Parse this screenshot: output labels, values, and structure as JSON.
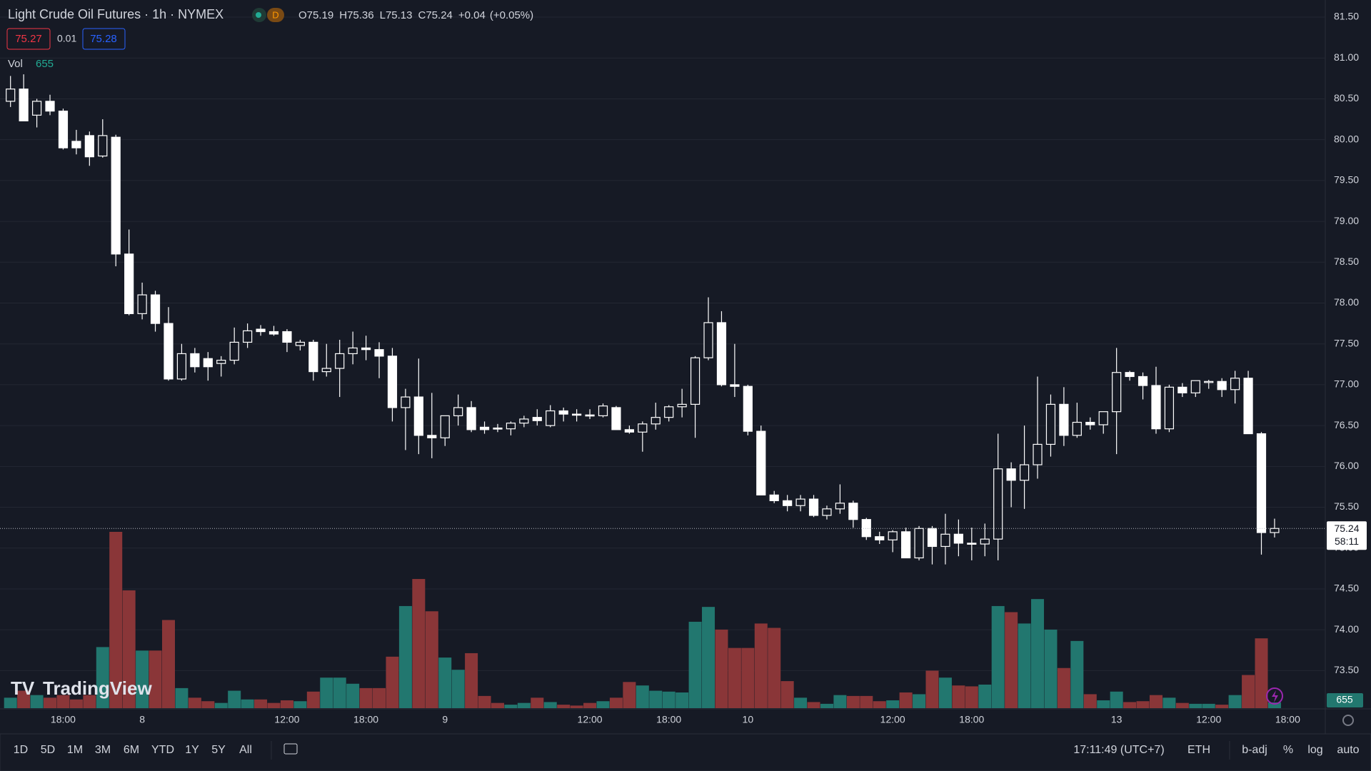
{
  "header": {
    "title": "Light Crude Oil Futures · 1h · NYMEX",
    "badge": "D",
    "open_label": "O",
    "high_label": "H",
    "low_label": "L",
    "close_label": "C",
    "change": "+0.04",
    "change_percent": "(+0.05%)",
    "bid": 75.27,
    "spread": 0.01,
    "ask": 75.28,
    "volume_label": "Vol",
    "countdown": "58:11",
    "brand": "TradingView"
  },
  "toolbar": {
    "ranges": [
      "1D",
      "5D",
      "1M",
      "3M",
      "6M",
      "YTD",
      "1Y",
      "5Y",
      "All"
    ],
    "clock": "17:11:49 (UTC+7)",
    "session": "ETH",
    "adjust": "b-adj",
    "percent": "%",
    "log": "log",
    "auto": "auto"
  },
  "chart_data": {
    "type": "candlestick",
    "categories": [
      null,
      null,
      null,
      null,
      "18:00",
      null,
      null,
      null,
      null,
      null,
      "8",
      null,
      null,
      null,
      null,
      null,
      null,
      null,
      null,
      null,
      null,
      "12:00",
      null,
      null,
      null,
      null,
      null,
      "18:00",
      null,
      null,
      null,
      null,
      null,
      "9",
      null,
      null,
      null,
      null,
      null,
      null,
      null,
      null,
      null,
      null,
      "12:00",
      null,
      null,
      null,
      null,
      null,
      "18:00",
      null,
      null,
      null,
      null,
      null,
      "10",
      null,
      null,
      null,
      null,
      null,
      null,
      null,
      null,
      null,
      null,
      "12:00",
      null,
      null,
      null,
      null,
      null,
      "18:00",
      null,
      null,
      null,
      null,
      null,
      null,
      null,
      null,
      null,
      null,
      "13",
      null,
      null,
      null,
      null,
      null,
      null,
      "12:00",
      null,
      null,
      null,
      null,
      null,
      "18:00"
    ],
    "open": [
      80.47,
      80.62,
      80.3,
      80.47,
      80.35,
      79.98,
      80.05,
      79.8,
      80.03,
      78.6,
      77.87,
      78.1,
      77.75,
      77.07,
      77.38,
      77.32,
      77.26,
      77.3,
      77.52,
      77.68,
      77.65,
      77.65,
      77.48,
      77.52,
      77.16,
      77.2,
      77.38,
      77.45,
      77.43,
      77.35,
      76.72,
      76.85,
      76.38,
      76.35,
      76.62,
      76.72,
      76.48,
      76.47,
      76.46,
      76.53,
      76.6,
      76.5,
      76.68,
      76.64,
      76.63,
      76.62,
      76.72,
      76.45,
      76.42,
      76.52,
      76.6,
      76.73,
      76.76,
      77.33,
      77.76,
      77.0,
      76.98,
      76.43,
      75.65,
      75.58,
      75.52,
      75.6,
      75.4,
      75.48,
      75.55,
      75.35,
      75.14,
      75.1,
      75.2,
      74.88,
      75.24,
      75.02,
      75.17,
      75.06,
      75.05,
      75.11,
      75.97,
      75.83,
      76.02,
      76.27,
      76.76,
      76.38,
      76.54,
      76.51,
      76.67,
      77.15,
      77.1,
      76.99,
      76.46,
      76.97,
      76.9,
      77.03,
      77.04,
      76.94,
      77.08,
      76.4,
      75.19,
      null
    ],
    "high": [
      80.78,
      80.8,
      80.5,
      80.55,
      80.38,
      80.12,
      80.1,
      80.25,
      80.06,
      78.9,
      78.25,
      78.15,
      77.95,
      77.5,
      77.45,
      77.4,
      77.35,
      77.7,
      77.75,
      77.73,
      77.72,
      77.68,
      77.55,
      77.55,
      77.5,
      77.55,
      77.65,
      77.6,
      77.52,
      77.45,
      76.95,
      77.32,
      76.9,
      76.6,
      76.88,
      76.8,
      76.55,
      76.52,
      76.55,
      76.62,
      76.7,
      76.75,
      76.72,
      76.7,
      76.7,
      76.77,
      76.74,
      76.5,
      76.55,
      76.78,
      76.75,
      76.95,
      77.35,
      78.07,
      77.9,
      77.5,
      77.0,
      76.5,
      75.7,
      75.65,
      75.65,
      75.65,
      75.52,
      75.78,
      75.58,
      75.37,
      75.2,
      75.22,
      75.25,
      75.27,
      75.27,
      75.42,
      75.35,
      75.25,
      75.3,
      76.4,
      76.05,
      76.5,
      77.1,
      76.88,
      76.97,
      76.78,
      76.6,
      76.65,
      77.45,
      77.17,
      77.15,
      77.22,
      77.0,
      77.02,
      77.05,
      77.06,
      77.08,
      77.17,
      77.17,
      76.42,
      75.36,
      null
    ],
    "low": [
      80.4,
      80.25,
      80.15,
      80.3,
      79.88,
      79.82,
      79.68,
      79.78,
      78.45,
      77.85,
      77.8,
      77.65,
      77.05,
      77.05,
      77.15,
      77.05,
      77.1,
      77.25,
      77.45,
      77.6,
      77.6,
      77.4,
      77.42,
      77.05,
      77.1,
      76.85,
      77.25,
      77.3,
      77.08,
      76.55,
      76.2,
      76.15,
      76.1,
      76.25,
      76.5,
      76.42,
      76.4,
      76.42,
      76.38,
      76.48,
      76.5,
      76.48,
      76.55,
      76.55,
      76.58,
      76.6,
      76.45,
      76.4,
      76.18,
      76.45,
      76.55,
      76.6,
      76.35,
      77.3,
      76.98,
      76.85,
      76.38,
      75.65,
      75.55,
      75.45,
      75.45,
      75.38,
      75.35,
      75.42,
      75.25,
      75.1,
      75.05,
      74.95,
      74.88,
      74.85,
      74.8,
      74.8,
      74.9,
      74.85,
      74.9,
      74.85,
      75.5,
      75.48,
      75.85,
      76.12,
      76.25,
      76.35,
      76.45,
      76.4,
      76.15,
      77.05,
      76.82,
      76.4,
      76.42,
      76.85,
      76.85,
      76.95,
      76.85,
      76.77,
      76.4,
      74.92,
      75.13,
      null
    ],
    "close": [
      80.62,
      80.23,
      80.47,
      80.35,
      79.9,
      79.9,
      79.79,
      80.05,
      78.6,
      77.87,
      78.1,
      77.75,
      77.07,
      77.38,
      77.22,
      77.22,
      77.3,
      77.52,
      77.66,
      77.65,
      77.62,
      77.52,
      77.52,
      77.16,
      77.2,
      77.38,
      77.45,
      77.43,
      77.35,
      76.72,
      76.85,
      76.38,
      76.35,
      76.62,
      76.72,
      76.45,
      76.45,
      76.46,
      76.53,
      76.58,
      76.56,
      76.68,
      76.64,
      76.63,
      76.62,
      76.74,
      76.45,
      76.42,
      76.52,
      76.6,
      76.73,
      76.76,
      77.33,
      77.76,
      77.0,
      76.98,
      76.43,
      75.65,
      75.58,
      75.52,
      75.6,
      75.4,
      75.48,
      75.55,
      75.35,
      75.14,
      75.1,
      75.2,
      74.88,
      75.24,
      75.02,
      75.17,
      75.06,
      75.05,
      75.11,
      75.97,
      75.83,
      76.02,
      76.27,
      76.76,
      76.38,
      76.54,
      76.51,
      76.67,
      77.15,
      77.1,
      76.99,
      76.46,
      76.97,
      76.9,
      77.05,
      77.04,
      76.94,
      77.08,
      76.4,
      75.19,
      75.24,
      null
    ],
    "volume": [
      1200,
      2000,
      1500,
      1200,
      1500,
      1000,
      1500,
      7000,
      20200,
      13500,
      6600,
      6600,
      10100,
      2300,
      1200,
      800,
      600,
      2000,
      1000,
      1000,
      600,
      900,
      800,
      1900,
      3500,
      3500,
      2800,
      2300,
      2300,
      5900,
      11700,
      14800,
      11100,
      5800,
      4400,
      6300,
      1400,
      600,
      400,
      600,
      1200,
      700,
      400,
      300,
      600,
      800,
      1200,
      3000,
      2600,
      2000,
      1900,
      1800,
      9900,
      11600,
      9000,
      6900,
      6900,
      9700,
      9200,
      3100,
      1200,
      700,
      500,
      1500,
      1400,
      1400,
      800,
      900,
      1800,
      1600,
      4300,
      3500,
      2600,
      2500,
      2700,
      11700,
      11000,
      9700,
      12500,
      9000,
      4600,
      7700,
      1600,
      900,
      1900,
      700,
      800,
      1500,
      1200,
      600,
      500,
      500,
      400,
      1500,
      3800,
      8000,
      655,
      null
    ],
    "up_color": "#ffffff",
    "down_color": "#ffffff",
    "volume_up_color": "#22776f",
    "volume_down_color": "#8a3638",
    "ylim": [
      73.04,
      81.71
    ],
    "yticks": [
      {
        "value": 73.5,
        "label": "73.50"
      },
      {
        "value": 74,
        "label": "74.00"
      },
      {
        "value": 74.5,
        "label": "74.50"
      },
      {
        "value": 75,
        "label": "75.00"
      },
      {
        "value": 75.5,
        "label": "75.50"
      },
      {
        "value": 76,
        "label": "76.00"
      },
      {
        "value": 76.5,
        "label": "76.50"
      },
      {
        "value": 77,
        "label": "77.00"
      },
      {
        "value": 77.5,
        "label": "77.50"
      },
      {
        "value": 78,
        "label": "78.00"
      },
      {
        "value": 78.5,
        "label": "78.50"
      },
      {
        "value": 79,
        "label": "79.00"
      },
      {
        "value": 79.5,
        "label": "79.50"
      },
      {
        "value": 80,
        "label": "80.00"
      },
      {
        "value": 80.5,
        "label": "80.50"
      },
      {
        "value": 81,
        "label": "81.00"
      },
      {
        "value": 81.5,
        "label": "81.50"
      }
    ],
    "grid": true
  }
}
